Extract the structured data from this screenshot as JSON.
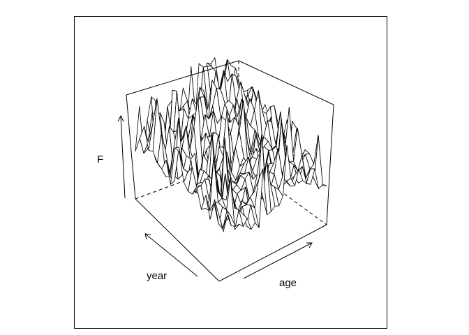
{
  "chart_data": {
    "type": "surface",
    "axis_labels": {
      "x": "year",
      "y": "age",
      "z": "F"
    },
    "grid": false,
    "legend": "none",
    "colors": {
      "background": "#ffffff",
      "lines": "#000000",
      "surface_fill": "#ffffff"
    }
  }
}
